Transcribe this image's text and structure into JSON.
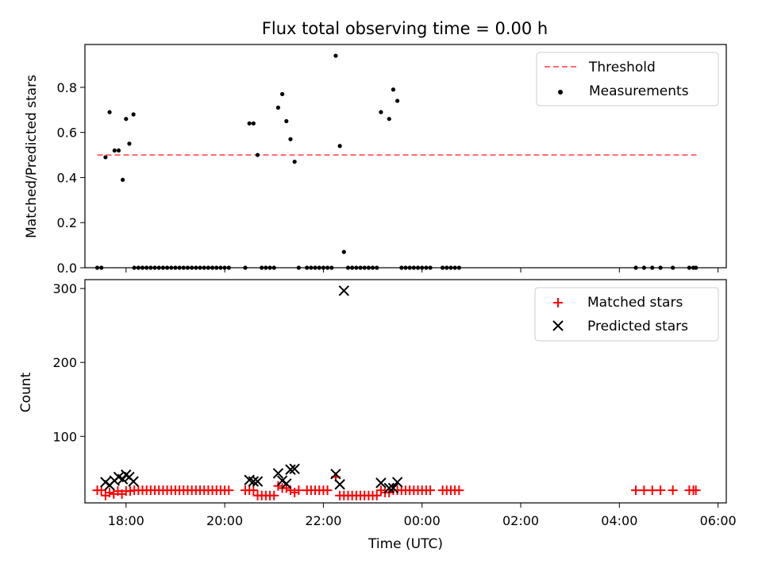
{
  "title": "Flux total observing time = 0.00 h",
  "chart_data": [
    {
      "type": "scatter",
      "ylabel": "Matched/Predicted stars",
      "xlabel": "",
      "xlim": [
        "17:10",
        "06:10"
      ],
      "ylim": [
        0,
        0.99
      ],
      "yticks": [
        0.0,
        0.2,
        0.4,
        0.6,
        0.8
      ],
      "ytick_labels": [
        "0.0",
        "0.2",
        "0.4",
        "0.6",
        "0.8"
      ],
      "legend_position": "top-right",
      "threshold": {
        "name": "Threshold",
        "value": 0.5,
        "x_range": [
          "17:25",
          "05:35"
        ],
        "color": "#ff6b6b"
      },
      "series": [
        {
          "name": "Measurements",
          "color": "#000000",
          "marker": "dot",
          "points": [
            [
              "17:25",
              0
            ],
            [
              "17:30",
              0
            ],
            [
              "17:35",
              0.49
            ],
            [
              "17:40",
              0.69
            ],
            [
              "17:46",
              0.52
            ],
            [
              "17:51",
              0.52
            ],
            [
              "17:56",
              0.39
            ],
            [
              "18:00",
              0.66
            ],
            [
              "18:04",
              0.55
            ],
            [
              "18:09",
              0.68
            ],
            [
              "18:10",
              0
            ],
            [
              "18:15",
              0
            ],
            [
              "18:20",
              0
            ],
            [
              "18:25",
              0
            ],
            [
              "18:30",
              0
            ],
            [
              "18:35",
              0
            ],
            [
              "18:40",
              0
            ],
            [
              "18:45",
              0
            ],
            [
              "18:50",
              0
            ],
            [
              "18:55",
              0
            ],
            [
              "19:00",
              0
            ],
            [
              "19:05",
              0
            ],
            [
              "19:10",
              0
            ],
            [
              "19:15",
              0
            ],
            [
              "19:20",
              0
            ],
            [
              "19:25",
              0
            ],
            [
              "19:30",
              0
            ],
            [
              "19:35",
              0
            ],
            [
              "19:40",
              0
            ],
            [
              "19:45",
              0
            ],
            [
              "19:50",
              0
            ],
            [
              "19:55",
              0
            ],
            [
              "20:00",
              0
            ],
            [
              "20:05",
              0
            ],
            [
              "20:25",
              0
            ],
            [
              "20:30",
              0.64
            ],
            [
              "20:35",
              0.64
            ],
            [
              "20:40",
              0.5
            ],
            [
              "20:45",
              0
            ],
            [
              "20:50",
              0
            ],
            [
              "20:55",
              0
            ],
            [
              "21:00",
              0
            ],
            [
              "21:05",
              0.71
            ],
            [
              "21:10",
              0.77
            ],
            [
              "21:15",
              0.65
            ],
            [
              "21:20",
              0.57
            ],
            [
              "21:25",
              0.47
            ],
            [
              "21:30",
              0
            ],
            [
              "21:40",
              0
            ],
            [
              "21:45",
              0
            ],
            [
              "21:50",
              0
            ],
            [
              "21:55",
              0
            ],
            [
              "22:00",
              0
            ],
            [
              "22:05",
              0
            ],
            [
              "22:10",
              0
            ],
            [
              "22:15",
              0.94
            ],
            [
              "22:20",
              0.54
            ],
            [
              "22:25",
              0.07
            ],
            [
              "22:30",
              0
            ],
            [
              "22:35",
              0
            ],
            [
              "22:40",
              0
            ],
            [
              "22:45",
              0
            ],
            [
              "22:50",
              0
            ],
            [
              "22:55",
              0
            ],
            [
              "23:00",
              0
            ],
            [
              "23:05",
              0
            ],
            [
              "23:10",
              0.69
            ],
            [
              "23:20",
              0.66
            ],
            [
              "23:25",
              0.79
            ],
            [
              "23:30",
              0.74
            ],
            [
              "23:35",
              0
            ],
            [
              "23:40",
              0
            ],
            [
              "23:45",
              0
            ],
            [
              "23:50",
              0
            ],
            [
              "23:55",
              0
            ],
            [
              "00:00",
              0
            ],
            [
              "00:05",
              0
            ],
            [
              "00:10",
              0
            ],
            [
              "00:25",
              0
            ],
            [
              "00:30",
              0
            ],
            [
              "00:35",
              0
            ],
            [
              "00:40",
              0
            ],
            [
              "00:45",
              0
            ],
            [
              "04:20",
              0
            ],
            [
              "04:30",
              0
            ],
            [
              "04:40",
              0
            ],
            [
              "04:50",
              0
            ],
            [
              "05:05",
              0
            ],
            [
              "05:25",
              0
            ],
            [
              "05:30",
              0
            ],
            [
              "05:33",
              0
            ]
          ]
        }
      ]
    },
    {
      "type": "scatter",
      "ylabel": "Count",
      "xlabel": "Time (UTC)",
      "xlim": [
        "17:10",
        "06:10"
      ],
      "ylim": [
        10,
        312
      ],
      "yticks": [
        100,
        200,
        300
      ],
      "ytick_labels": [
        "100",
        "200",
        "300"
      ],
      "xticks": [
        "18:00",
        "20:00",
        "22:00",
        "00:00",
        "02:00",
        "04:00",
        "06:00"
      ],
      "xtick_labels": [
        "18:00",
        "20:00",
        "22:00",
        "00:00",
        "02:00",
        "04:00",
        "06:00"
      ],
      "legend_position": "top-right",
      "series": [
        {
          "name": "Matched stars",
          "color": "#ff0000",
          "marker": "plus",
          "points": [
            [
              "17:25",
              27
            ],
            [
              "17:30",
              27
            ],
            [
              "17:35",
              20
            ],
            [
              "17:40",
              24
            ],
            [
              "17:45",
              22
            ],
            [
              "17:50",
              26
            ],
            [
              "17:55",
              22
            ],
            [
              "18:00",
              26
            ],
            [
              "18:05",
              26
            ],
            [
              "18:10",
              27
            ],
            [
              "18:15",
              27
            ],
            [
              "18:20",
              27
            ],
            [
              "18:25",
              27
            ],
            [
              "18:30",
              27
            ],
            [
              "18:35",
              27
            ],
            [
              "18:40",
              27
            ],
            [
              "18:45",
              27
            ],
            [
              "18:50",
              27
            ],
            [
              "18:55",
              27
            ],
            [
              "19:00",
              27
            ],
            [
              "19:05",
              27
            ],
            [
              "19:10",
              27
            ],
            [
              "19:15",
              27
            ],
            [
              "19:20",
              27
            ],
            [
              "19:25",
              27
            ],
            [
              "19:30",
              27
            ],
            [
              "19:35",
              27
            ],
            [
              "19:40",
              27
            ],
            [
              "19:45",
              27
            ],
            [
              "19:50",
              27
            ],
            [
              "19:55",
              27
            ],
            [
              "20:00",
              27
            ],
            [
              "20:05",
              27
            ],
            [
              "20:25",
              27
            ],
            [
              "20:30",
              27
            ],
            [
              "20:35",
              27
            ],
            [
              "20:40",
              20
            ],
            [
              "20:45",
              20
            ],
            [
              "20:50",
              20
            ],
            [
              "20:55",
              20
            ],
            [
              "21:00",
              20
            ],
            [
              "21:05",
              33
            ],
            [
              "21:10",
              30
            ],
            [
              "21:15",
              30
            ],
            [
              "21:20",
              27
            ],
            [
              "21:25",
              24
            ],
            [
              "21:30",
              27
            ],
            [
              "21:40",
              27
            ],
            [
              "21:45",
              27
            ],
            [
              "21:50",
              27
            ],
            [
              "21:55",
              27
            ],
            [
              "22:00",
              27
            ],
            [
              "22:05",
              27
            ],
            [
              "22:15",
              45
            ],
            [
              "22:20",
              20
            ],
            [
              "22:25",
              20
            ],
            [
              "22:30",
              20
            ],
            [
              "22:35",
              20
            ],
            [
              "22:40",
              20
            ],
            [
              "22:45",
              20
            ],
            [
              "22:50",
              20
            ],
            [
              "22:55",
              20
            ],
            [
              "23:00",
              20
            ],
            [
              "23:05",
              20
            ],
            [
              "23:10",
              27
            ],
            [
              "23:15",
              24
            ],
            [
              "23:20",
              24
            ],
            [
              "23:25",
              27
            ],
            [
              "23:30",
              27
            ],
            [
              "23:35",
              27
            ],
            [
              "23:40",
              27
            ],
            [
              "23:45",
              27
            ],
            [
              "23:50",
              27
            ],
            [
              "23:55",
              27
            ],
            [
              "00:00",
              27
            ],
            [
              "00:05",
              27
            ],
            [
              "00:10",
              27
            ],
            [
              "00:25",
              27
            ],
            [
              "00:30",
              27
            ],
            [
              "00:35",
              27
            ],
            [
              "00:40",
              27
            ],
            [
              "00:45",
              27
            ],
            [
              "04:20",
              27
            ],
            [
              "04:30",
              27
            ],
            [
              "04:40",
              27
            ],
            [
              "04:50",
              27
            ],
            [
              "05:05",
              27
            ],
            [
              "05:25",
              27
            ],
            [
              "05:30",
              27
            ],
            [
              "05:33",
              27
            ]
          ]
        },
        {
          "name": "Predicted stars",
          "color": "#000000",
          "marker": "x",
          "points": [
            [
              "17:35",
              38
            ],
            [
              "17:40",
              34
            ],
            [
              "17:46",
              40
            ],
            [
              "17:51",
              45
            ],
            [
              "17:56",
              42
            ],
            [
              "18:00",
              48
            ],
            [
              "18:04",
              45
            ],
            [
              "18:09",
              39
            ],
            [
              "20:30",
              41
            ],
            [
              "20:35",
              39
            ],
            [
              "20:40",
              39
            ],
            [
              "21:05",
              50
            ],
            [
              "21:10",
              40
            ],
            [
              "21:15",
              36
            ],
            [
              "21:20",
              55
            ],
            [
              "21:25",
              56
            ],
            [
              "22:15",
              49
            ],
            [
              "22:20",
              35
            ],
            [
              "22:25",
              297
            ],
            [
              "23:10",
              37
            ],
            [
              "23:20",
              30
            ],
            [
              "23:25",
              30
            ],
            [
              "23:30",
              38
            ]
          ]
        }
      ]
    }
  ]
}
